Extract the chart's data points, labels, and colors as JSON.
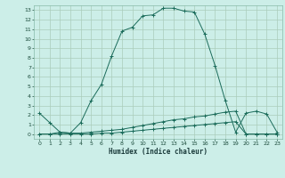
{
  "xlabel": "Humidex (Indice chaleur)",
  "bg_color": "#cceee8",
  "grid_color": "#aaccbb",
  "line_color": "#1a6b5a",
  "xlim": [
    -0.5,
    23.5
  ],
  "ylim": [
    -0.5,
    13.5
  ],
  "yticks": [
    0,
    1,
    2,
    3,
    4,
    5,
    6,
    7,
    8,
    9,
    10,
    11,
    12,
    13
  ],
  "xticks": [
    0,
    1,
    2,
    3,
    4,
    5,
    6,
    7,
    8,
    9,
    10,
    11,
    12,
    13,
    14,
    15,
    16,
    17,
    18,
    19,
    20,
    21,
    22,
    23
  ],
  "series": [
    {
      "x": [
        0,
        1,
        2,
        3,
        4,
        5,
        6,
        7,
        8,
        9,
        10,
        11,
        12,
        13,
        14,
        15,
        16,
        17,
        18,
        19,
        20,
        21,
        22,
        23
      ],
      "y": [
        2.2,
        1.2,
        0.2,
        0.1,
        1.2,
        3.5,
        5.2,
        8.2,
        10.8,
        11.2,
        12.4,
        12.5,
        13.2,
        13.2,
        12.9,
        12.8,
        10.5,
        7.2,
        3.5,
        0.2,
        2.2,
        2.4,
        2.1,
        0.2
      ]
    },
    {
      "x": [
        0,
        1,
        2,
        3,
        4,
        5,
        6,
        7,
        8,
        9,
        10,
        11,
        12,
        13,
        14,
        15,
        16,
        17,
        18,
        19,
        20,
        21,
        22,
        23
      ],
      "y": [
        0.0,
        0.0,
        0.2,
        0.1,
        0.1,
        0.2,
        0.3,
        0.4,
        0.5,
        0.7,
        0.9,
        1.1,
        1.3,
        1.5,
        1.6,
        1.8,
        1.9,
        2.1,
        2.3,
        2.4,
        0.0,
        0.0,
        0.0,
        0.0
      ]
    },
    {
      "x": [
        0,
        1,
        2,
        3,
        4,
        5,
        6,
        7,
        8,
        9,
        10,
        11,
        12,
        13,
        14,
        15,
        16,
        17,
        18,
        19,
        20,
        21,
        22,
        23
      ],
      "y": [
        0.0,
        0.0,
        0.0,
        0.0,
        0.0,
        0.0,
        0.1,
        0.1,
        0.2,
        0.3,
        0.4,
        0.5,
        0.6,
        0.7,
        0.8,
        0.9,
        1.0,
        1.1,
        1.2,
        1.3,
        0.0,
        0.0,
        0.0,
        0.0
      ]
    }
  ]
}
